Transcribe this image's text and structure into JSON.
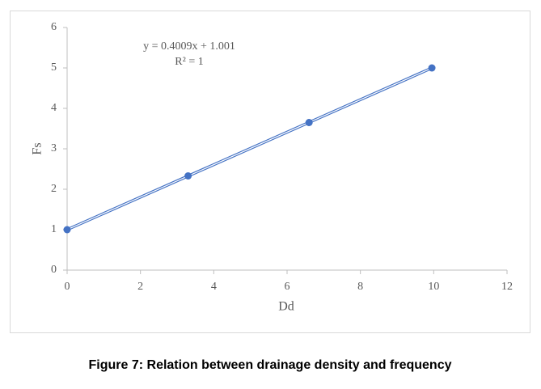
{
  "chart_data": {
    "type": "scatter",
    "x_label": "Dd",
    "y_label": "Fs",
    "equation": "y = 0.4009x + 1.001",
    "r_squared": "R² = 1",
    "caption": "Figure 7: Relation between drainage density and frequency",
    "x": [
      0,
      3.3,
      6.6,
      9.95
    ],
    "series": [
      {
        "name": "Fs",
        "color": "#4472c4",
        "values": [
          1,
          2.33,
          3.65,
          5.0
        ]
      }
    ],
    "trendline": true,
    "xlim": [
      0,
      12
    ],
    "xticks": [
      0,
      2,
      4,
      6,
      8,
      10,
      12
    ],
    "ylim": [
      0,
      6
    ],
    "yticks": [
      0,
      1,
      2,
      3,
      4,
      5,
      6
    ]
  }
}
